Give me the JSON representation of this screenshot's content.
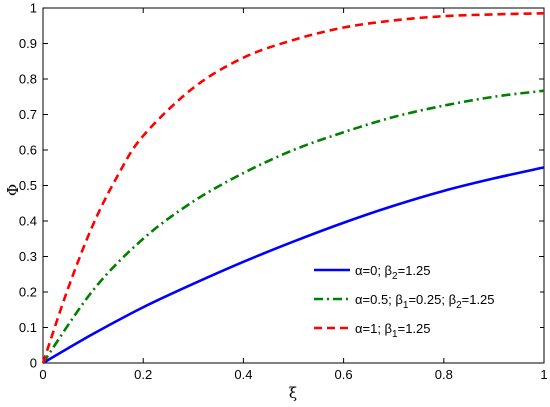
{
  "chart_data": {
    "type": "line",
    "title": "",
    "xlabel": "ξ",
    "ylabel": "Φ",
    "xlim": [
      0,
      1
    ],
    "ylim": [
      0,
      1
    ],
    "xticks": [
      0,
      0.2,
      0.4,
      0.6,
      0.8,
      1
    ],
    "yticks": [
      0,
      0.1,
      0.2,
      0.3,
      0.4,
      0.5,
      0.6,
      0.7,
      0.8,
      0.9,
      1
    ],
    "xtick_labels": [
      "0",
      "0.2",
      "0.4",
      "0.6",
      "0.8",
      "1"
    ],
    "ytick_labels": [
      "0",
      "0.1",
      "0.2",
      "0.3",
      "0.4",
      "0.5",
      "0.6",
      "0.7",
      "0.8",
      "0.9",
      "1"
    ],
    "grid": false,
    "legend_position": "lower-right",
    "series": [
      {
        "key": "s1",
        "legend_parts": [
          [
            "α=0; β",
            ""
          ],
          [
            "2",
            "sub"
          ],
          [
            "=1.25",
            ""
          ]
        ],
        "color": "#0000ff",
        "style": "solid",
        "x": [
          0,
          0.1,
          0.2,
          0.3,
          0.4,
          0.5,
          0.6,
          0.7,
          0.8,
          0.9,
          1.0
        ],
        "y": [
          0,
          0.082,
          0.157,
          0.223,
          0.285,
          0.342,
          0.395,
          0.443,
          0.485,
          0.52,
          0.551
        ]
      },
      {
        "key": "s2",
        "legend_parts": [
          [
            "α=0.5; β",
            ""
          ],
          [
            "1",
            "sub"
          ],
          [
            "=0.25; β",
            ""
          ],
          [
            "2",
            "sub"
          ],
          [
            "=1.25",
            ""
          ]
        ],
        "color": "#008000",
        "style": "dashdot",
        "x": [
          0,
          0.1,
          0.2,
          0.3,
          0.4,
          0.5,
          0.6,
          0.7,
          0.8,
          0.9,
          1.0
        ],
        "y": [
          0,
          0.205,
          0.35,
          0.455,
          0.535,
          0.6,
          0.65,
          0.693,
          0.725,
          0.75,
          0.767
        ]
      },
      {
        "key": "s3",
        "legend_parts": [
          [
            "α=1; β",
            ""
          ],
          [
            "1",
            "sub"
          ],
          [
            "=1.25",
            ""
          ]
        ],
        "color": "#ff0000",
        "style": "dashed",
        "x": [
          0,
          0.05,
          0.1,
          0.15,
          0.2,
          0.3,
          0.4,
          0.5,
          0.6,
          0.7,
          0.8,
          0.9,
          1.0
        ],
        "y": [
          0,
          0.21,
          0.39,
          0.53,
          0.64,
          0.775,
          0.86,
          0.91,
          0.945,
          0.965,
          0.977,
          0.982,
          0.985
        ]
      }
    ]
  }
}
